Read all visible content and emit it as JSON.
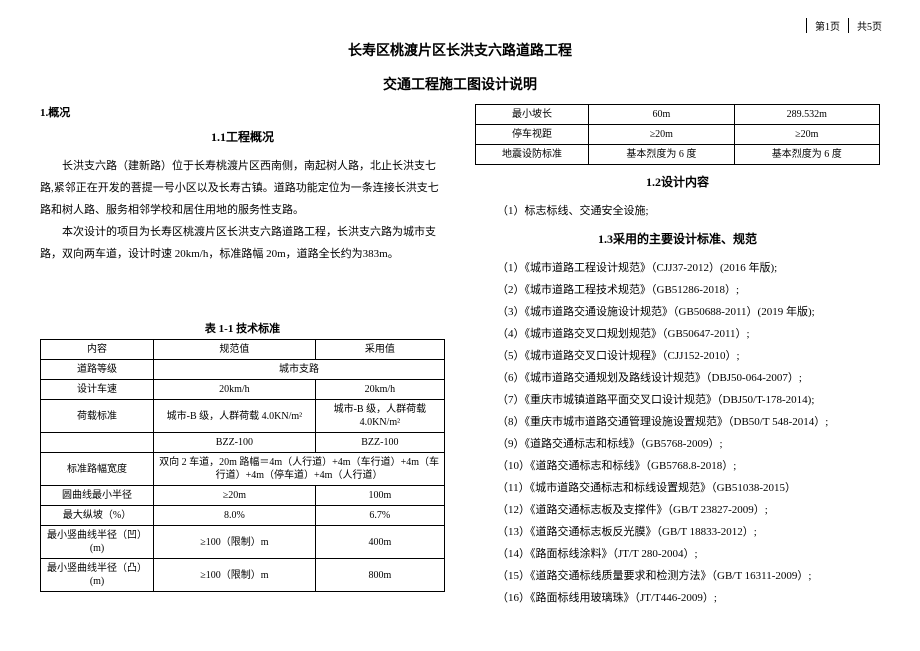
{
  "page_header": {
    "current": "第1页",
    "total": "共5页"
  },
  "title": "长寿区桃渡片区长洪支六路道路工程",
  "subtitle": "交通工程施工图设计说明",
  "left": {
    "sec1": "1.概况",
    "sec11": "1.1工程概况",
    "p1": "长洪支六路（建新路）位于长寿桃渡片区西南侧，南起树人路，北止长洪支七路,紧邻正在开发的菩提一号小区以及长寿古镇。道路功能定位为一条连接长洪支七路和树人路、服务相邻学校和居住用地的服务性支路。",
    "p2": "本次设计的项目为长寿区桃渡片区长洪支六路道路工程，长洪支六路为城市支路，双向两车道，设计时速 20km/h，标准路幅 20m，道路全长约为383m。",
    "table_caption": "表 1-1 技术标准",
    "table": {
      "header": [
        "内容",
        "规范值",
        "采用值"
      ],
      "rows": [
        [
          "道路等级",
          {
            "colspan": 2,
            "text": "城市支路"
          }
        ],
        [
          "设计车速",
          "20km/h",
          "20km/h"
        ],
        [
          "荷载标准",
          "城市-B 级，人群荷载 4.0KN/m²",
          "城市-B 级，人群荷载 4.0KN/m²"
        ],
        [
          "",
          "BZZ-100",
          "BZZ-100"
        ],
        [
          "标准路幅宽度",
          {
            "colspan": 2,
            "text": "双向 2 车道，20m 路幅＝4m（人行道）+4m（车行道）+4m（车行道）+4m（停车道）+4m（人行道）"
          }
        ],
        [
          "圆曲线最小半径",
          "≥20m",
          "100m"
        ],
        [
          "最大纵坡（%）",
          "8.0%",
          "6.7%"
        ],
        [
          "最小竖曲线半径（凹）(m)",
          "≥100（限制）m",
          "400m"
        ],
        [
          "最小竖曲线半径（凸）(m)",
          "≥100（限制）m",
          "800m"
        ]
      ]
    }
  },
  "right": {
    "table": {
      "rows": [
        [
          "最小坡长",
          "60m",
          "289.532m"
        ],
        [
          "停车视距",
          "≥20m",
          "≥20m"
        ],
        [
          "地震设防标准",
          "基本烈度为 6 度",
          "基本烈度为 6 度"
        ]
      ]
    },
    "sec12": "1.2设计内容",
    "item12": "（1）标志标线、交通安全设施;",
    "sec13": "1.3采用的主要设计标准、规范",
    "standards": [
      "（1）《城市道路工程设计规范》（CJJ37-2012）(2016 年版);",
      "（2）《城市道路工程技术规范》（GB51286-2018）;",
      "（3）《城市道路交通设施设计规范》（GB50688-2011）(2019 年版);",
      "（4）《城市道路交叉口规划规范》（GB50647-2011）;",
      "（5）《城市道路交叉口设计规程》（CJJ152-2010）;",
      "（6）《城市道路交通规划及路线设计规范》（DBJ50-064-2007）;",
      "（7）《重庆市城镇道路平面交叉口设计规范》（DBJ50/T-178-2014);",
      "（8）《重庆市城市道路交通管理设施设置规范》（DB50/T 548-2014）;",
      "（9）《道路交通标志和标线》（GB5768-2009）;",
      "（10）《道路交通标志和标线》（GB5768.8-2018）;",
      "（11）《城市道路交通标志和标线设置规范》（GB51038-2015）",
      "（12）《道路交通标志板及支撑件》（GB/T 23827-2009）;",
      "（13）《道路交通标志板反光膜》（GB/T 18833-2012）;",
      "（14）《路面标线涂料》（JT/T 280-2004）;",
      "（15）《道路交通标线质量要求和检测方法》（GB/T 16311-2009）;",
      "（16）《路面标线用玻璃珠》（JT/T446-2009）;"
    ]
  }
}
